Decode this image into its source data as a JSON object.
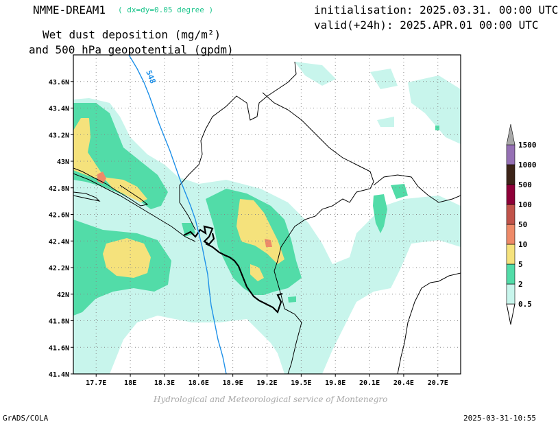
{
  "header": {
    "model": "NMME-DREAM1",
    "resolution": "( dx=dy=0.05 degree )",
    "initialisation": "initialisation: 2025.03.31. 00:00 UTC",
    "valid": "valid(+24h): 2025.APR.01 00:00 UTC",
    "title_line1": "Wet dust deposition (mg/m²)",
    "title_line2": "and 500 hPa geopotential (gpdm)"
  },
  "map": {
    "lat_range": [
      41.4,
      43.8
    ],
    "lon_range": [
      17.5,
      20.9
    ],
    "lat_ticks": [
      "43.6N",
      "43.4N",
      "43.2N",
      "43N",
      "42.8N",
      "42.6N",
      "42.4N",
      "42.2N",
      "42N",
      "41.8N",
      "41.6N",
      "41.4N"
    ],
    "lon_ticks": [
      "17.7E",
      "18E",
      "18.3E",
      "18.6E",
      "18.9E",
      "19.2E",
      "19.5E",
      "19.8E",
      "20.1E",
      "20.4E",
      "20.7E"
    ],
    "contour_label": "548",
    "grid": "dotted"
  },
  "legend": {
    "levels": [
      "0.5",
      "2",
      "5",
      "10",
      "50",
      "100",
      "500",
      "1000",
      "1500"
    ],
    "colors": [
      "#c8f5ec",
      "#52dca8",
      "#f5e27c",
      "#ee8a68",
      "#c1534a",
      "#8e0038",
      "#3c2418",
      "#9570b4",
      "#a8a8a8"
    ]
  },
  "footer": {
    "credit": "Hydrological and Meteorological service of Montenegro",
    "software": "GrADS/COLA",
    "timestamp": "2025-03-31-10:55"
  }
}
